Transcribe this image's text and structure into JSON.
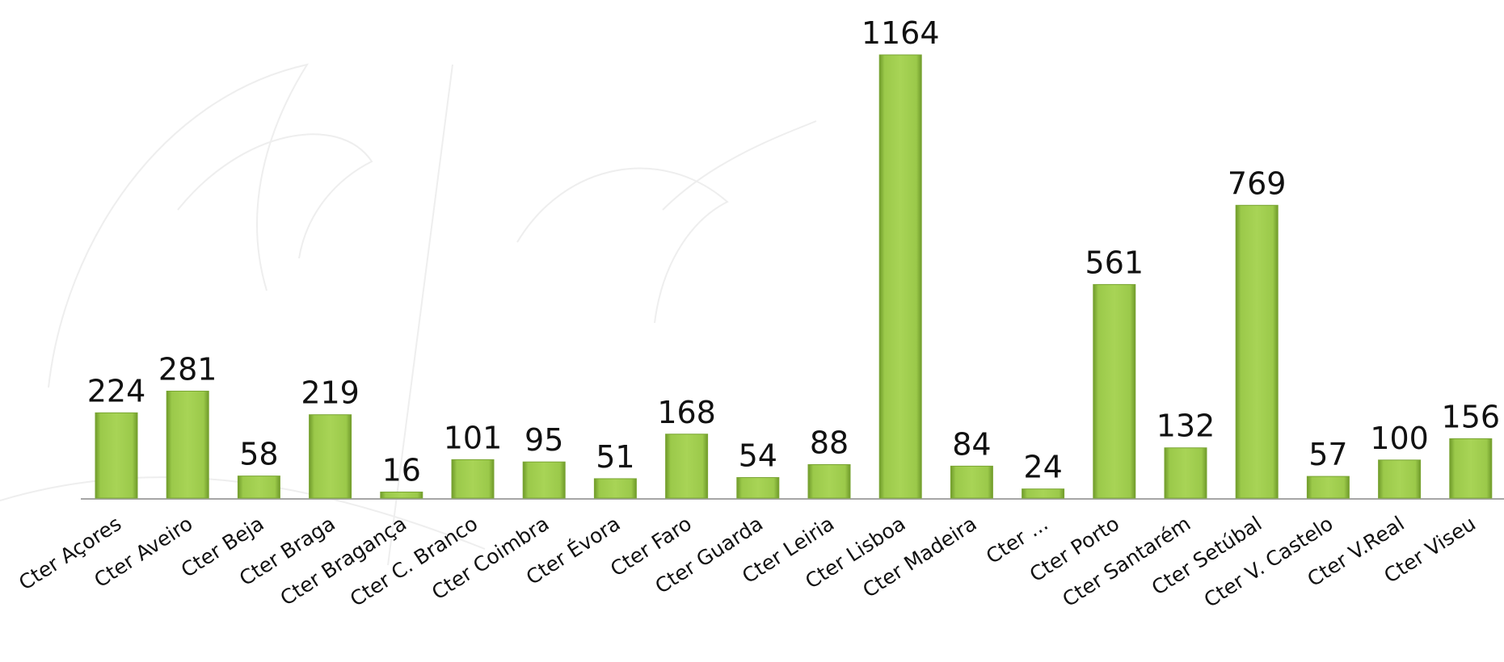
{
  "chart_data": {
    "type": "bar",
    "categories": [
      "Cter Açores",
      "Cter Aveiro",
      "Cter Beja",
      "Cter Braga",
      "Cter Bragança",
      "Cter C. Branco",
      "Cter Coimbra",
      "Cter Évora",
      "Cter Faro",
      "Cter Guarda",
      "Cter Leiria",
      "Cter Lisboa",
      "Cter Madeira",
      "Cter ...",
      "Cter Porto",
      "Cter Santarém",
      "Cter Setúbal",
      "Cter V. Castelo",
      "Cter V.Real",
      "Cter Viseu"
    ],
    "values": [
      224,
      281,
      58,
      219,
      16,
      101,
      95,
      51,
      168,
      54,
      88,
      1164,
      84,
      24,
      561,
      132,
      769,
      57,
      100,
      156
    ],
    "color": "#9bc94a"
  }
}
